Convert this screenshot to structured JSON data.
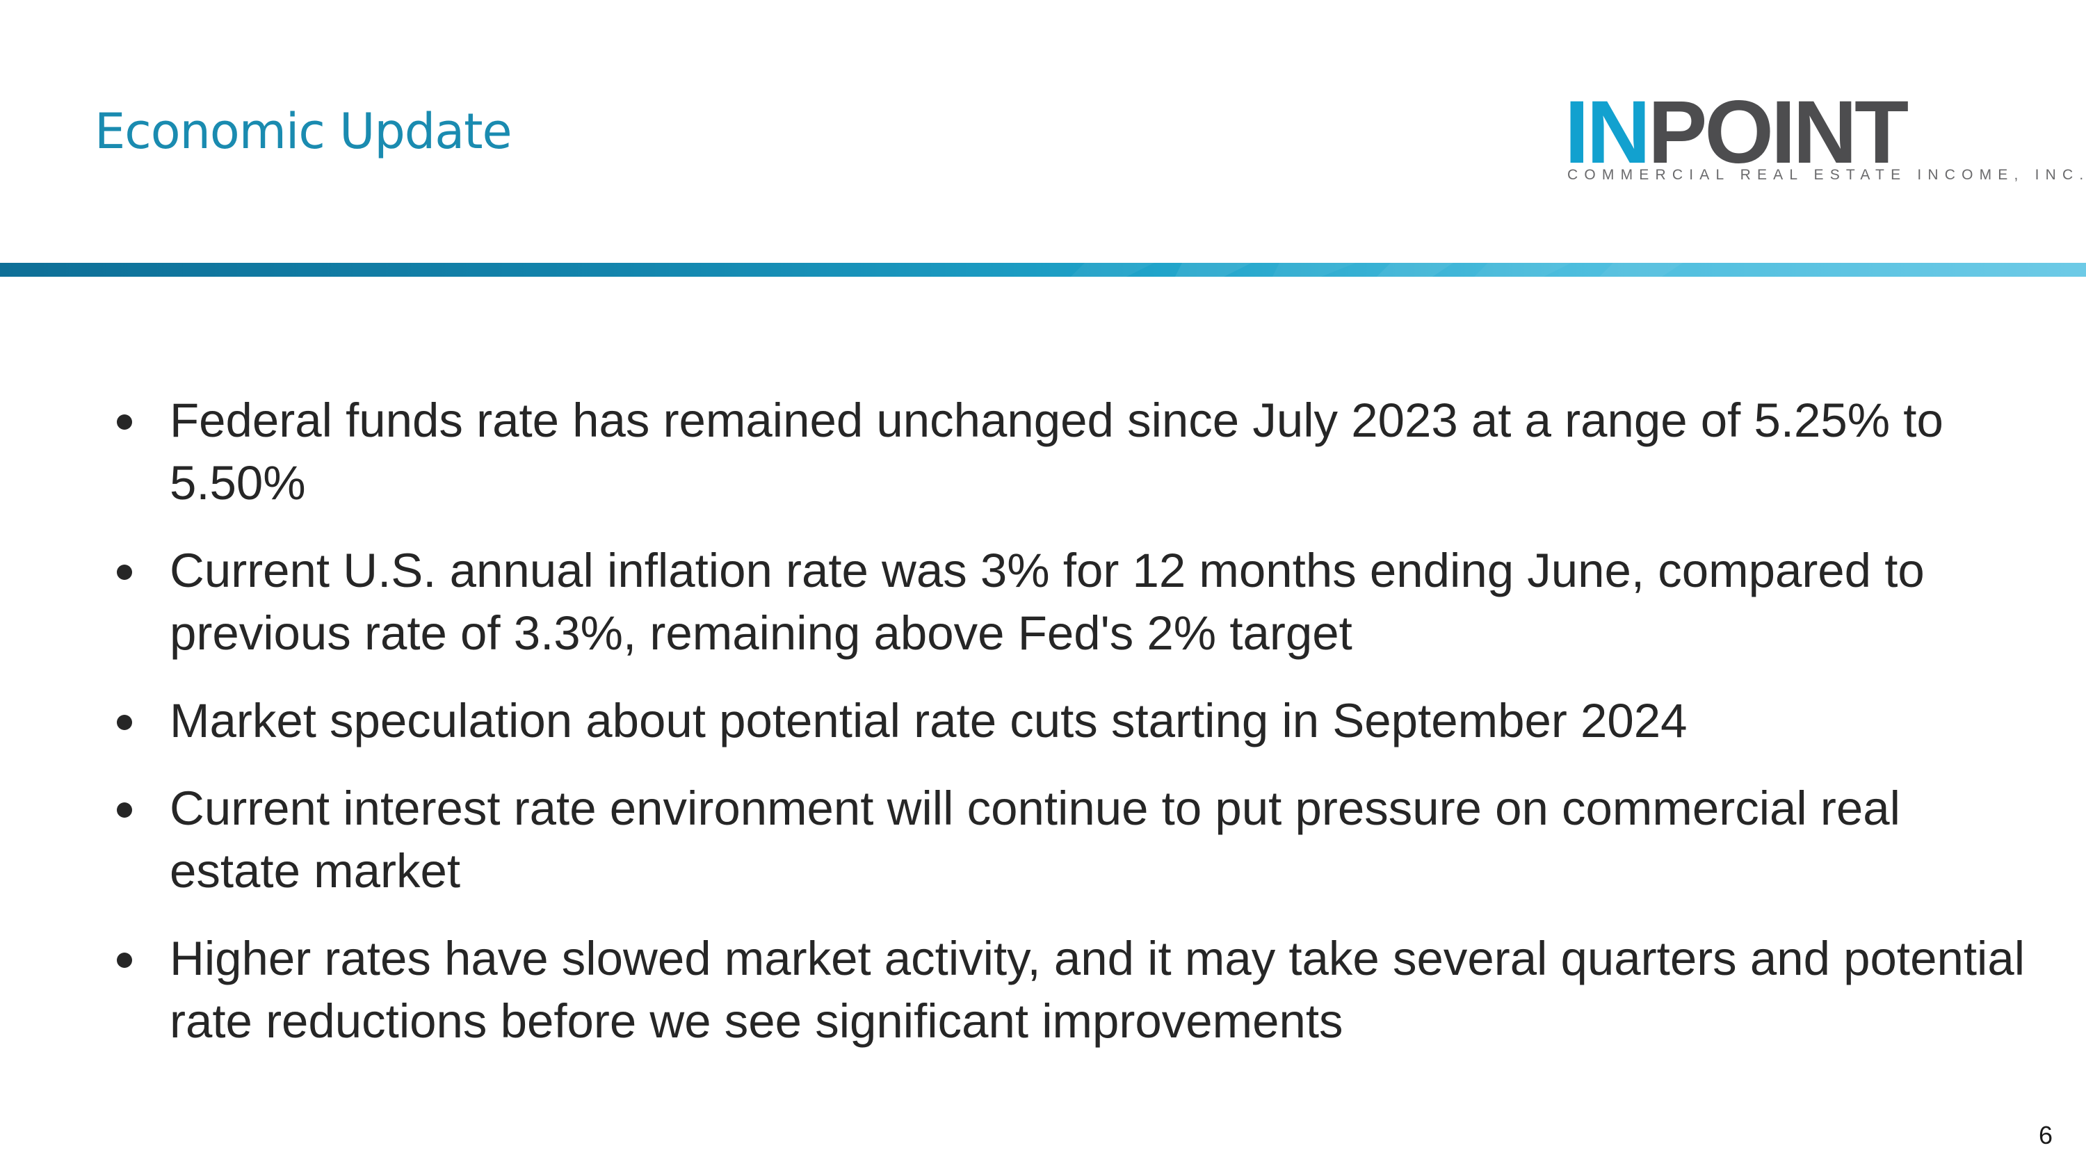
{
  "slide": {
    "title": "Economic Update",
    "page_number": "6"
  },
  "logo": {
    "word_accent": "IN",
    "word_main": "POINT",
    "subtitle": "COMMERCIAL REAL ESTATE INCOME, INC.",
    "accent_color": "#12a1cf",
    "main_color": "#4d4d4f"
  },
  "colors": {
    "title": "#1a8bb0",
    "band_start": "#0e6f97",
    "band_end": "#6dcae6",
    "body_text": "#262626"
  },
  "bullets": [
    "Federal funds rate has remained unchanged since July 2023 at a range of 5.25% to 5.50%",
    "Current U.S. annual inflation rate was 3% for 12 months ending June, compared to previous rate of 3.3%, remaining above Fed's 2% target",
    "Market speculation about potential rate cuts starting in September 2024",
    "Current interest rate environment will continue to put pressure on commercial real estate market",
    "Higher rates have slowed market activity, and it may take several quarters and potential rate reductions before we see significant improvements"
  ]
}
